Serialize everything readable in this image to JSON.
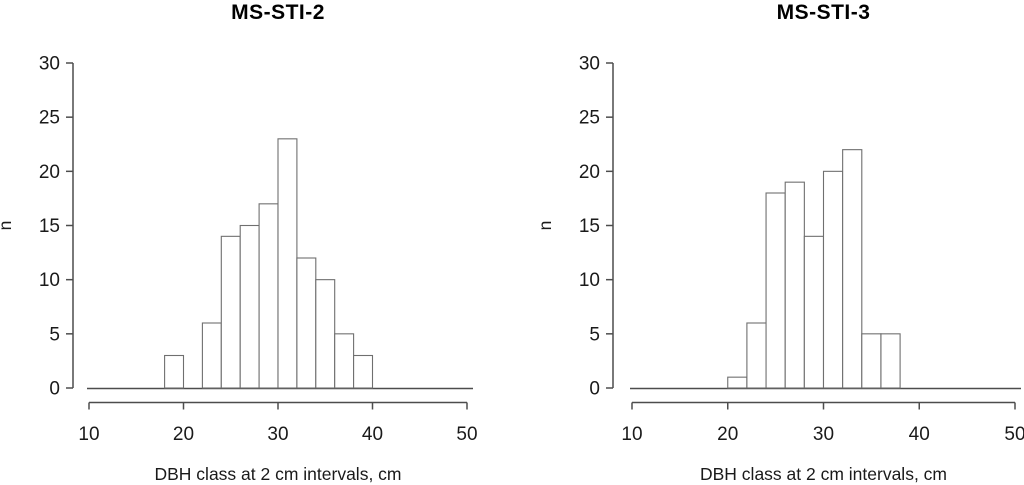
{
  "figure": {
    "background": "#ffffff",
    "text_color": "#1a1a1a",
    "axis_color": "#4d4d4d",
    "bar_stroke": "#6f6f6f",
    "bar_fill": "#ffffff"
  },
  "chart_data": [
    {
      "type": "bar",
      "chart_kind": "histogram",
      "title": "MS-STI-2",
      "xlabel": "DBH class at 2 cm intervals, cm",
      "ylabel": "n",
      "xlim": [
        10,
        50
      ],
      "ylim": [
        0,
        30
      ],
      "x_ticks": [
        10,
        20,
        30,
        40,
        50
      ],
      "y_ticks": [
        0,
        5,
        10,
        15,
        20,
        25,
        30
      ],
      "bin_width_cm": 2,
      "grid": false,
      "legend": false,
      "bins": [
        {
          "from": 18,
          "to": 20,
          "count": 3
        },
        {
          "from": 20,
          "to": 22,
          "count": 0
        },
        {
          "from": 22,
          "to": 24,
          "count": 6
        },
        {
          "from": 24,
          "to": 26,
          "count": 14
        },
        {
          "from": 26,
          "to": 28,
          "count": 15
        },
        {
          "from": 28,
          "to": 30,
          "count": 17
        },
        {
          "from": 30,
          "to": 32,
          "count": 23
        },
        {
          "from": 32,
          "to": 34,
          "count": 12
        },
        {
          "from": 34,
          "to": 36,
          "count": 10
        },
        {
          "from": 36,
          "to": 38,
          "count": 5
        },
        {
          "from": 38,
          "to": 40,
          "count": 3
        }
      ]
    },
    {
      "type": "bar",
      "chart_kind": "histogram",
      "title": "MS-STI-3",
      "xlabel": "DBH class at 2 cm intervals, cm",
      "ylabel": "n",
      "xlim": [
        10,
        50
      ],
      "ylim": [
        0,
        30
      ],
      "x_ticks": [
        10,
        20,
        30,
        40,
        50
      ],
      "y_ticks": [
        0,
        5,
        10,
        15,
        20,
        25,
        30
      ],
      "bin_width_cm": 2,
      "grid": false,
      "legend": false,
      "bins": [
        {
          "from": 20,
          "to": 22,
          "count": 1
        },
        {
          "from": 22,
          "to": 24,
          "count": 6
        },
        {
          "from": 24,
          "to": 26,
          "count": 18
        },
        {
          "from": 26,
          "to": 28,
          "count": 19
        },
        {
          "from": 28,
          "to": 30,
          "count": 14
        },
        {
          "from": 30,
          "to": 32,
          "count": 20
        },
        {
          "from": 32,
          "to": 34,
          "count": 22
        },
        {
          "from": 34,
          "to": 36,
          "count": 5
        },
        {
          "from": 36,
          "to": 38,
          "count": 5
        }
      ]
    }
  ]
}
